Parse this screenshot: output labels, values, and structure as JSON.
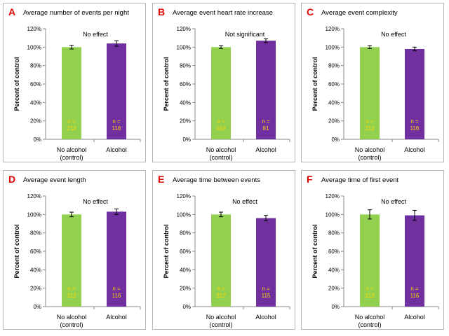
{
  "colors": {
    "panel_letter": "#e00000",
    "control_bar": "#92d050",
    "alcohol_bar": "#7030a0",
    "n_label": "#ffd700",
    "axis": "#888888",
    "border": "#b4b4b4"
  },
  "chart_data": [
    {
      "type": "bar",
      "letter": "A",
      "title": "Average number of events per night",
      "annotation": "No effect",
      "ylabel": "Percent of control",
      "ylim": [
        0,
        120
      ],
      "yticks": [
        "0%",
        "20%",
        "40%",
        "60%",
        "80%",
        "100%",
        "120%"
      ],
      "grid": false,
      "legend": "none",
      "categories": [
        "No alcohol (control)",
        "Alcohol"
      ],
      "category_lines": [
        [
          "No alcohol",
          "(control)"
        ],
        [
          "Alcohol"
        ]
      ],
      "values": [
        100,
        104
      ],
      "errors": [
        2,
        3
      ],
      "n_labels": [
        [
          "n =",
          "212"
        ],
        [
          "n =",
          "116"
        ]
      ]
    },
    {
      "type": "bar",
      "letter": "B",
      "title": "Average event heart rate increase",
      "annotation": "Not significant",
      "ylabel": "Percent of control",
      "ylim": [
        0,
        120
      ],
      "yticks": [
        "0%",
        "20%",
        "40%",
        "60%",
        "80%",
        "100%",
        "120%"
      ],
      "grid": false,
      "legend": "none",
      "categories": [
        "No alcohol (control)",
        "Alcohol"
      ],
      "category_lines": [
        [
          "No alcohol",
          "(control)"
        ],
        [
          "Alcohol"
        ]
      ],
      "values": [
        100,
        107
      ],
      "errors": [
        1.5,
        2
      ],
      "n_labels": [
        [
          "n =",
          "162"
        ],
        [
          "n =",
          "81"
        ]
      ]
    },
    {
      "type": "bar",
      "letter": "C",
      "title": "Average event complexity",
      "annotation": "No effect",
      "ylabel": "Percent of control",
      "ylim": [
        0,
        120
      ],
      "yticks": [
        "0%",
        "20%",
        "40%",
        "60%",
        "80%",
        "100%",
        "120%"
      ],
      "grid": false,
      "legend": "none",
      "categories": [
        "No alcohol (control)",
        "Alcohol"
      ],
      "category_lines": [
        [
          "No alcohol",
          "(control)"
        ],
        [
          "Alcohol"
        ]
      ],
      "values": [
        100,
        98
      ],
      "errors": [
        1.5,
        2
      ],
      "n_labels": [
        [
          "n =",
          "212"
        ],
        [
          "n =",
          "116"
        ]
      ]
    },
    {
      "type": "bar",
      "letter": "D",
      "title": "Average event length",
      "annotation": "No effect",
      "ylabel": "Percent of control",
      "ylim": [
        0,
        120
      ],
      "yticks": [
        "0%",
        "20%",
        "40%",
        "60%",
        "80%",
        "100%",
        "120%"
      ],
      "grid": false,
      "legend": "none",
      "categories": [
        "No alcohol (control)",
        "Alcohol"
      ],
      "category_lines": [
        [
          "No alcohol",
          "(control)"
        ],
        [
          "Alcohol"
        ]
      ],
      "values": [
        100,
        103
      ],
      "errors": [
        2.5,
        3
      ],
      "n_labels": [
        [
          "n =",
          "212"
        ],
        [
          "n =",
          "116"
        ]
      ]
    },
    {
      "type": "bar",
      "letter": "E",
      "title": "Average time between events",
      "annotation": "No effect",
      "ylabel": "Percent of control",
      "ylim": [
        0,
        120
      ],
      "yticks": [
        "0%",
        "20%",
        "40%",
        "60%",
        "80%",
        "100%",
        "120%"
      ],
      "grid": false,
      "legend": "none",
      "categories": [
        "No alcohol (control)",
        "Alcohol"
      ],
      "category_lines": [
        [
          "No alcohol",
          "(control)"
        ],
        [
          "Alcohol"
        ]
      ],
      "values": [
        100,
        96
      ],
      "errors": [
        2.5,
        3
      ],
      "n_labels": [
        [
          "n =",
          "212"
        ],
        [
          "n =",
          "115"
        ]
      ]
    },
    {
      "type": "bar",
      "letter": "F",
      "title": "Average time of first event",
      "annotation": "No effect",
      "ylabel": "Percent of control",
      "ylim": [
        0,
        120
      ],
      "yticks": [
        "0%",
        "20%",
        "40%",
        "60%",
        "80%",
        "100%",
        "120%"
      ],
      "grid": false,
      "legend": "none",
      "categories": [
        "No alcohol (control)",
        "Alcohol"
      ],
      "category_lines": [
        [
          "No alcohol",
          "(control)"
        ],
        [
          "Alcohol"
        ]
      ],
      "values": [
        100,
        99
      ],
      "errors": [
        5,
        5.5
      ],
      "n_labels": [
        [
          "n =",
          "212"
        ],
        [
          "n =",
          "116"
        ]
      ]
    }
  ]
}
